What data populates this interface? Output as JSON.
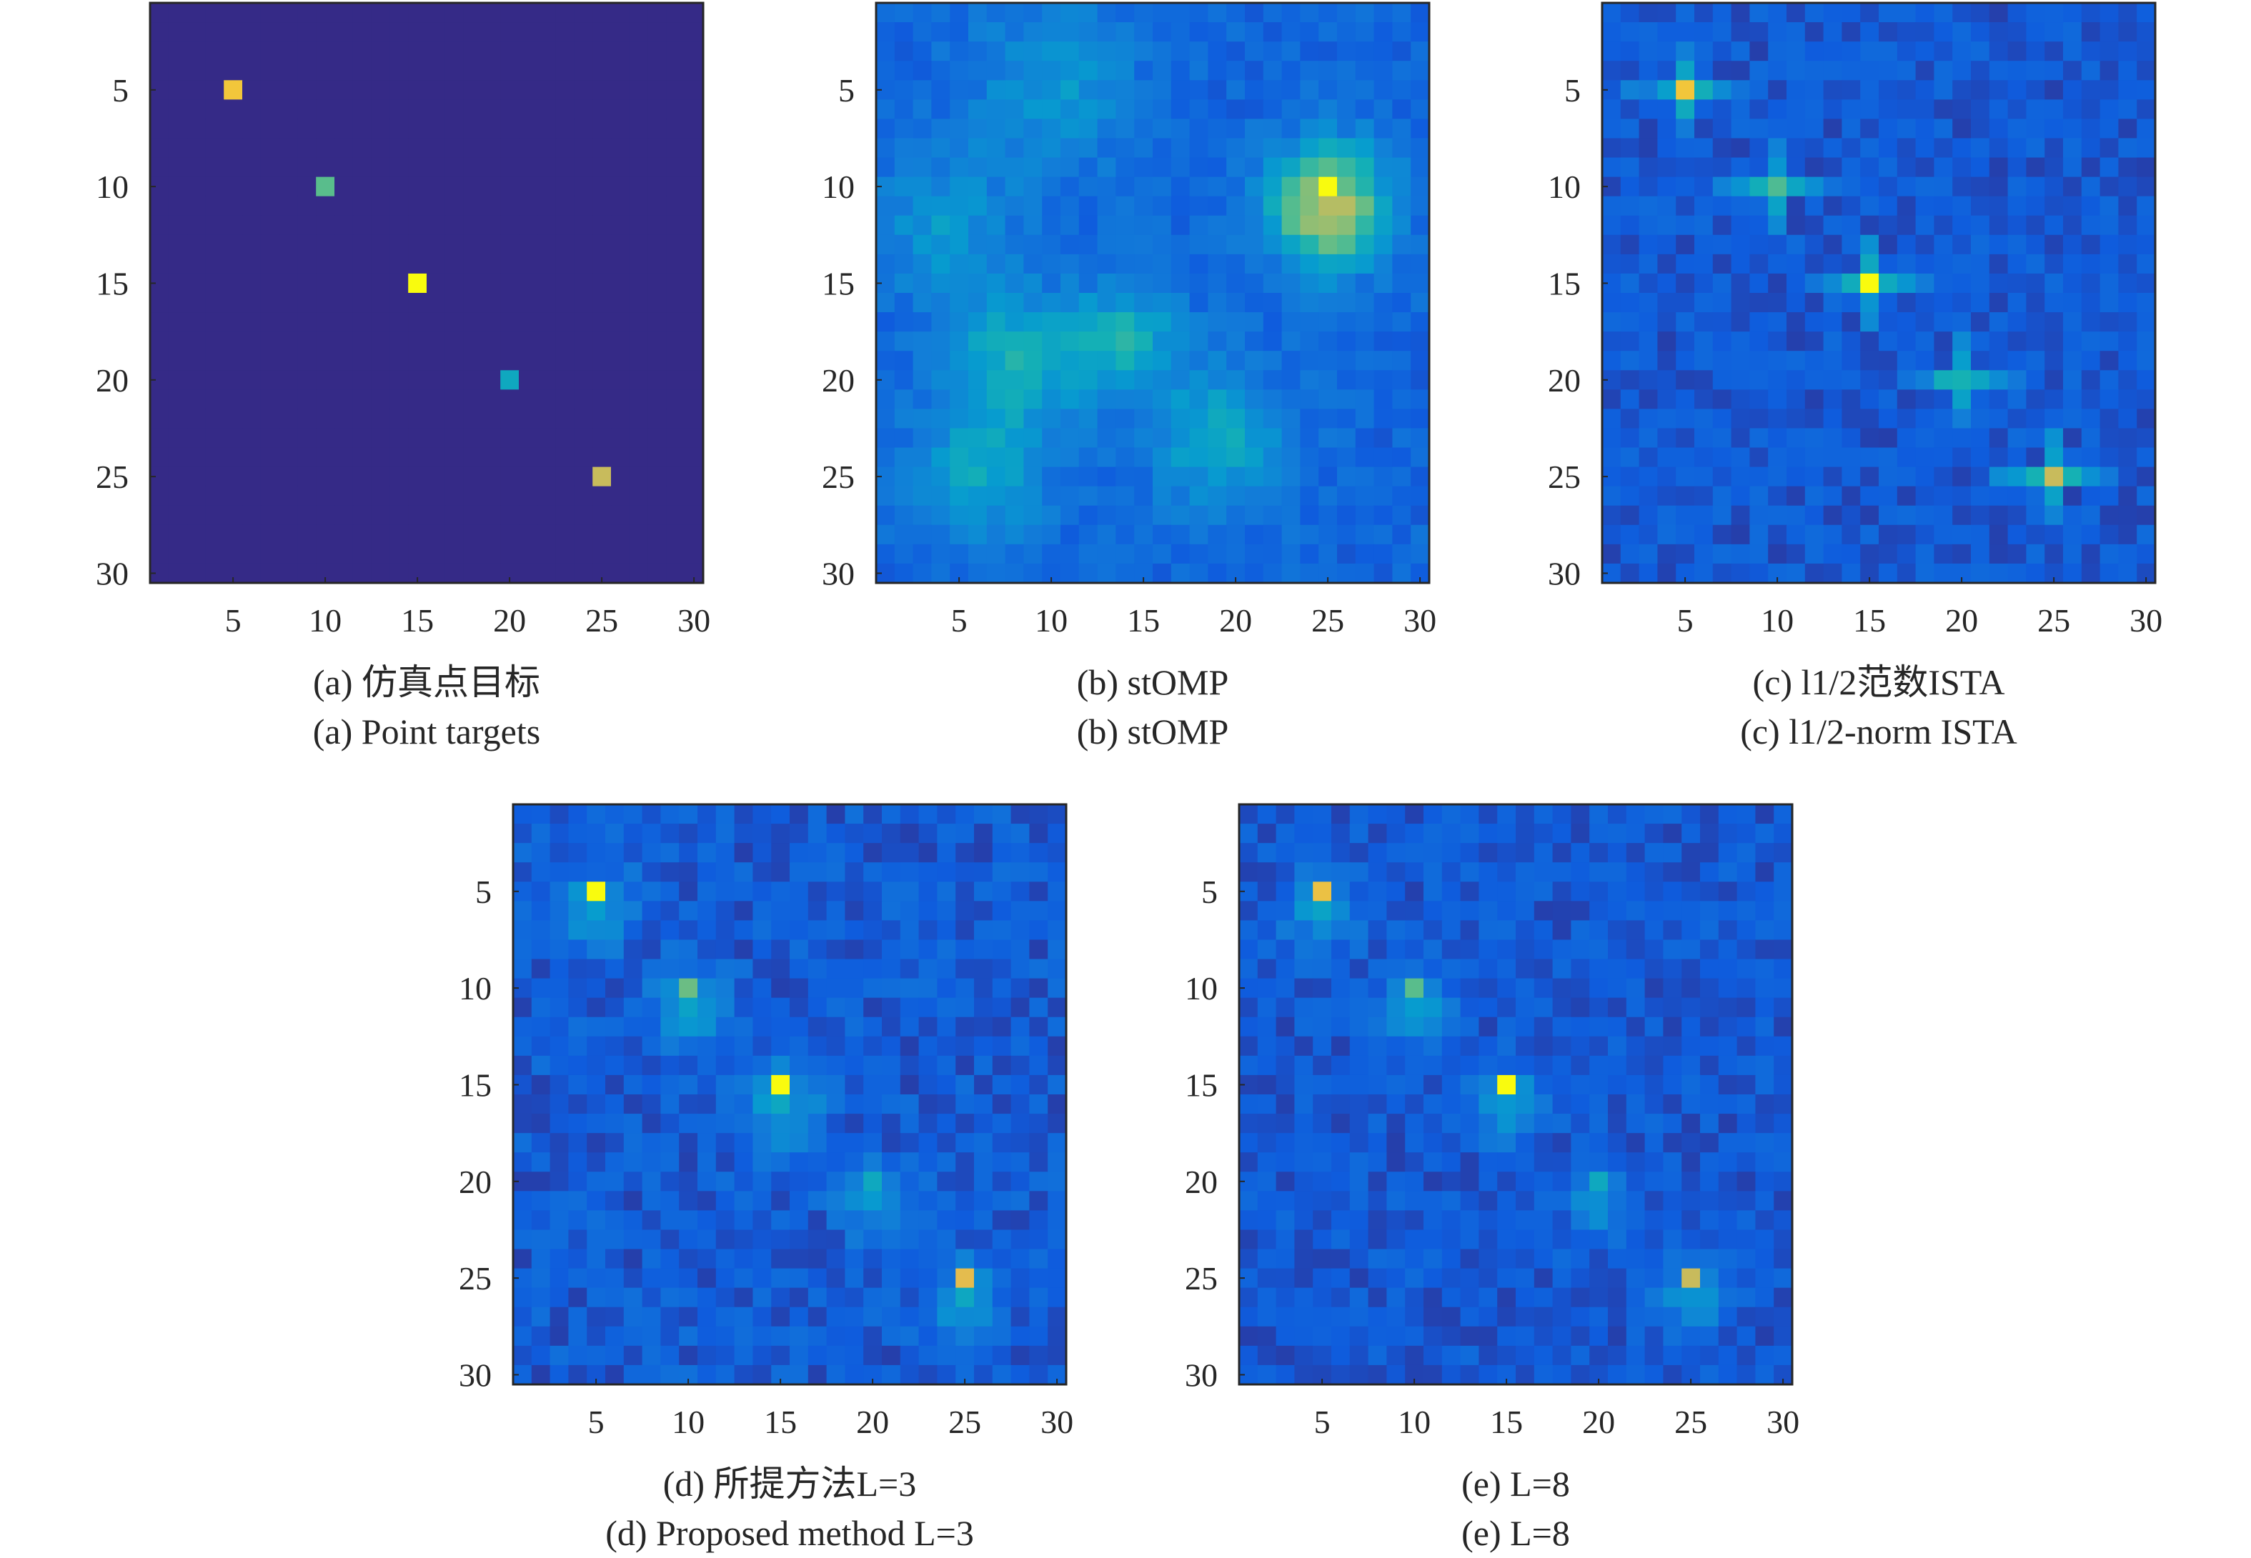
{
  "chart_data": [
    {
      "type": "heatmap",
      "caption_cn": "(a) 仿真点目标",
      "caption_en": "(a) Point targets",
      "grid_size": 30,
      "xticks": [
        5,
        10,
        15,
        20,
        25,
        30
      ],
      "yticks": [
        5,
        10,
        15,
        20,
        25,
        30
      ],
      "colormap": "parula",
      "background": 0.0,
      "noise": 0.0,
      "noise_seed": 0,
      "points": [
        {
          "row": 5,
          "col": 5,
          "value": 0.92
        },
        {
          "row": 10,
          "col": 10,
          "value": 0.62
        },
        {
          "row": 15,
          "col": 15,
          "value": 1.0
        },
        {
          "row": 20,
          "col": 20,
          "value": 0.45
        },
        {
          "row": 25,
          "col": 25,
          "value": 0.82
        }
      ],
      "blobs": []
    },
    {
      "type": "heatmap",
      "caption_cn": "(b) stOMP",
      "caption_en": "(b) stOMP",
      "grid_size": 30,
      "xticks": [
        5,
        10,
        15,
        20,
        25,
        30
      ],
      "yticks": [
        5,
        10,
        15,
        20,
        25,
        30
      ],
      "colormap": "parula",
      "background": 0.1,
      "noise": 0.12,
      "noise_seed": 11,
      "points": [
        {
          "row": 10,
          "col": 25,
          "value": 1.0
        },
        {
          "row": 12,
          "col": 26,
          "value": 0.7
        }
      ],
      "blobs": [
        {
          "row": 11,
          "col": 25,
          "amp": 0.65,
          "sigma": 2.2
        },
        {
          "row": 19,
          "col": 8,
          "amp": 0.32,
          "sigma": 2.5
        },
        {
          "row": 18,
          "col": 14,
          "amp": 0.32,
          "sigma": 2.0
        },
        {
          "row": 23,
          "col": 19,
          "amp": 0.28,
          "sigma": 2.5
        },
        {
          "row": 25,
          "col": 6,
          "amp": 0.25,
          "sigma": 2.5
        },
        {
          "row": 5,
          "col": 10,
          "amp": 0.2,
          "sigma": 3.0
        },
        {
          "row": 12,
          "col": 4,
          "amp": 0.2,
          "sigma": 2.5
        }
      ]
    },
    {
      "type": "heatmap",
      "caption_cn": "(c) l1/2范数ISTA",
      "caption_en": "(c) l1/2-norm ISTA",
      "grid_size": 30,
      "xticks": [
        5,
        10,
        15,
        20,
        25,
        30
      ],
      "yticks": [
        5,
        10,
        15,
        20,
        25,
        30
      ],
      "colormap": "parula",
      "background": 0.05,
      "noise": 0.13,
      "noise_seed": 23,
      "points": [
        {
          "row": 5,
          "col": 5,
          "value": 0.92
        },
        {
          "row": 10,
          "col": 10,
          "value": 0.6
        },
        {
          "row": 15,
          "col": 15,
          "value": 1.0
        },
        {
          "row": 20,
          "col": 20,
          "value": 0.5
        },
        {
          "row": 25,
          "col": 25,
          "value": 0.82
        }
      ],
      "blobs": [],
      "cross": true
    },
    {
      "type": "heatmap",
      "caption_cn": "(d) 所提方法L=3",
      "caption_en": "(d) Proposed method L=3",
      "grid_size": 30,
      "xticks": [
        5,
        10,
        15,
        20,
        25,
        30
      ],
      "yticks": [
        5,
        10,
        15,
        20,
        25,
        30
      ],
      "colormap": "parula",
      "background": 0.05,
      "noise": 0.15,
      "noise_seed": 37,
      "points": [
        {
          "row": 5,
          "col": 5,
          "value": 1.0
        },
        {
          "row": 10,
          "col": 10,
          "value": 0.65
        },
        {
          "row": 15,
          "col": 15,
          "value": 1.0
        },
        {
          "row": 20,
          "col": 20,
          "value": 0.45
        },
        {
          "row": 25,
          "col": 25,
          "value": 0.88
        }
      ],
      "blobs": [
        {
          "row": 6,
          "col": 5,
          "amp": 0.28,
          "sigma": 1.3
        },
        {
          "row": 11,
          "col": 10,
          "amp": 0.28,
          "sigma": 1.3
        },
        {
          "row": 16,
          "col": 15,
          "amp": 0.3,
          "sigma": 1.4
        },
        {
          "row": 21,
          "col": 20,
          "amp": 0.25,
          "sigma": 1.2
        },
        {
          "row": 26,
          "col": 25,
          "amp": 0.25,
          "sigma": 1.3
        }
      ]
    },
    {
      "type": "heatmap",
      "caption_cn": "(e) L=8",
      "caption_en": "(e) L=8",
      "grid_size": 30,
      "xticks": [
        5,
        10,
        15,
        20,
        25,
        30
      ],
      "yticks": [
        5,
        10,
        15,
        20,
        25,
        30
      ],
      "colormap": "parula",
      "background": 0.05,
      "noise": 0.13,
      "noise_seed": 51,
      "points": [
        {
          "row": 5,
          "col": 5,
          "value": 0.9
        },
        {
          "row": 10,
          "col": 10,
          "value": 0.62
        },
        {
          "row": 15,
          "col": 15,
          "value": 1.0
        },
        {
          "row": 20,
          "col": 20,
          "value": 0.45
        },
        {
          "row": 25,
          "col": 25,
          "value": 0.82
        }
      ],
      "blobs": [
        {
          "row": 6,
          "col": 5,
          "amp": 0.26,
          "sigma": 1.3
        },
        {
          "row": 11,
          "col": 10,
          "amp": 0.26,
          "sigma": 1.3
        },
        {
          "row": 16,
          "col": 15,
          "amp": 0.28,
          "sigma": 1.3
        },
        {
          "row": 21,
          "col": 20,
          "amp": 0.22,
          "sigma": 1.2
        },
        {
          "row": 26,
          "col": 25,
          "amp": 0.24,
          "sigma": 1.3
        }
      ]
    }
  ]
}
